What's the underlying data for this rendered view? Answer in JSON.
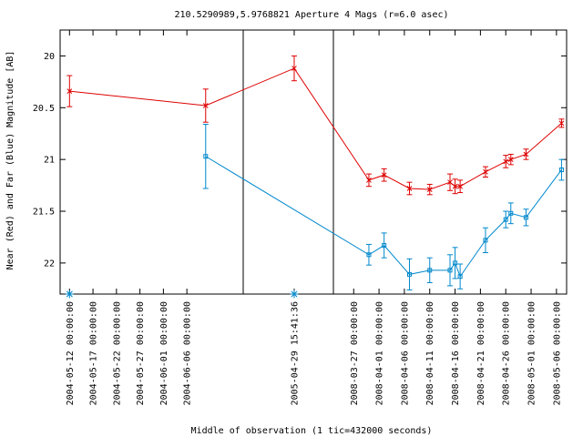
{
  "chart_data": {
    "type": "line",
    "title": "210.5290989,5.9768821   Aperture 4 Mags (r=6.0 asec)",
    "xlabel": "Middle of observation (1 tic=432000 seconds)",
    "ylabel": "Near (Red) and Far (Blue) Magnitude [AB]",
    "ylim": [
      22.3,
      19.75
    ],
    "y_inverted": true,
    "y_ticks": [
      "20",
      "20.5",
      "21",
      "21.5",
      "22"
    ],
    "y_tick_values": [
      20,
      20.5,
      21,
      21.5,
      22
    ],
    "panels": [
      {
        "x_range": [
          "2004-05-10",
          "2004-06-18"
        ],
        "ticks": [
          "2004-05-12 00:00:00",
          "2004-05-17 00:00:00",
          "2004-05-22 00:00:00",
          "2004-05-27 00:00:00",
          "2004-06-01 00:00:00",
          "2004-06-06 00:00:00"
        ],
        "tick_dates": [
          "2004-05-12",
          "2004-05-17",
          "2004-05-22",
          "2004-05-27",
          "2004-06-01",
          "2004-06-06"
        ]
      },
      {
        "x_range": [
          "2005-04-24",
          "2005-05-04"
        ],
        "ticks": [
          "2005-04-29 15:41:36"
        ],
        "tick_dates": [
          "2005-04-29 15:41:36"
        ]
      },
      {
        "x_range": [
          "2008-03-23",
          "2008-05-08"
        ],
        "ticks": [
          "2008-03-27 00:00:00",
          "2008-04-01 00:00:00",
          "2008-04-06 00:00:00",
          "2008-04-11 00:00:00",
          "2008-04-16 00:00:00",
          "2008-04-21 00:00:00",
          "2008-04-26 00:00:00",
          "2008-05-01 00:00:00",
          "2008-05-06 00:00:00"
        ],
        "tick_dates": [
          "2008-03-27",
          "2008-04-01",
          "2008-04-06",
          "2008-04-11",
          "2008-04-16",
          "2008-04-21",
          "2008-04-26",
          "2008-05-01",
          "2008-05-06"
        ]
      }
    ],
    "series": [
      {
        "color": "#dd0000",
        "marker": "x",
        "points": [
          {
            "x": "2004-05-12",
            "y": 20.34,
            "err": 0.15
          },
          {
            "x": "2004-06-10",
            "y": 20.48,
            "err": 0.16
          },
          {
            "x": "2005-04-29 15:41:36",
            "y": 20.12,
            "err": 0.12
          },
          {
            "x": "2008-03-30",
            "y": 21.2,
            "err": 0.06
          },
          {
            "x": "2008-04-02",
            "y": 21.15,
            "err": 0.06
          },
          {
            "x": "2008-04-07",
            "y": 21.28,
            "err": 0.06
          },
          {
            "x": "2008-04-11",
            "y": 21.29,
            "err": 0.05
          },
          {
            "x": "2008-04-15",
            "y": 21.22,
            "err": 0.08
          },
          {
            "x": "2008-04-16",
            "y": 21.26,
            "err": 0.07
          },
          {
            "x": "2008-04-17",
            "y": 21.26,
            "err": 0.06
          },
          {
            "x": "2008-04-22",
            "y": 21.12,
            "err": 0.05
          },
          {
            "x": "2008-04-26",
            "y": 21.02,
            "err": 0.06
          },
          {
            "x": "2008-04-27",
            "y": 21.0,
            "err": 0.05
          },
          {
            "x": "2008-04-30",
            "y": 20.95,
            "err": 0.05
          },
          {
            "x": "2008-05-07",
            "y": 20.65,
            "err": 0.04
          }
        ]
      },
      {
        "color": "#0088cc",
        "marker": "square",
        "points": [
          {
            "x": "2004-06-10",
            "y": 20.97,
            "err": 0.31
          },
          {
            "x": "2008-03-30",
            "y": 21.92,
            "err": 0.1
          },
          {
            "x": "2008-04-02",
            "y": 21.83,
            "err": 0.12
          },
          {
            "x": "2008-04-07",
            "y": 22.11,
            "err": 0.15
          },
          {
            "x": "2008-04-11",
            "y": 22.07,
            "err": 0.12
          },
          {
            "x": "2008-04-15",
            "y": 22.07,
            "err": 0.15
          },
          {
            "x": "2008-04-16",
            "y": 22.0,
            "err": 0.15
          },
          {
            "x": "2008-04-17",
            "y": 22.13,
            "err": 0.12
          },
          {
            "x": "2008-04-22",
            "y": 21.78,
            "err": 0.12
          },
          {
            "x": "2008-04-26",
            "y": 21.58,
            "err": 0.08
          },
          {
            "x": "2008-04-27",
            "y": 21.52,
            "err": 0.1
          },
          {
            "x": "2008-04-30",
            "y": 21.56,
            "err": 0.08
          },
          {
            "x": "2008-05-07",
            "y": 21.1,
            "err": 0.1
          }
        ]
      }
    ],
    "axis_markers": {
      "color": "#0088cc",
      "marker": "asterisk",
      "x": [
        "2004-05-12",
        "2005-04-29 15:41:36"
      ]
    }
  }
}
